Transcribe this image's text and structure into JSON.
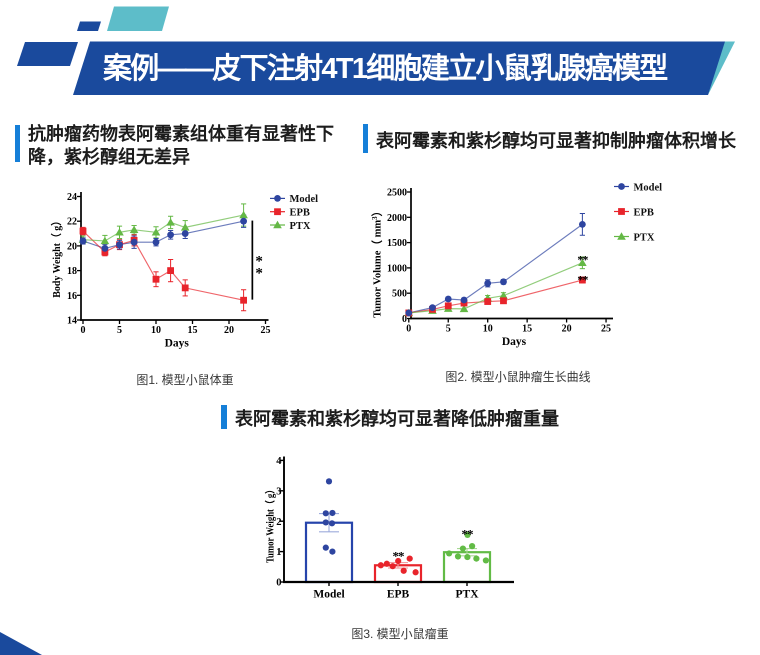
{
  "banner": {
    "title": "案例——皮下注射4T1细胞建立小鼠乳腺癌模型",
    "bg_color": "#1a4a9d",
    "teal_color": "#5dbdc9"
  },
  "sections": [
    {
      "bar_color": "#157fd8",
      "line1": "抗肿瘤药物表阿霉素组体重有显著性下",
      "line2": "降，紫杉醇组无差异"
    },
    {
      "bar_color": "#157fd8",
      "title": "表阿霉素和紫杉醇均可显著抑制肿瘤体积增长"
    },
    {
      "bar_color": "#157fd8",
      "title": "表阿霉素和紫杉醇均可显著降低肿瘤重量"
    }
  ],
  "figures": [
    {
      "caption": "图1. 模型小鼠体重"
    },
    {
      "caption": "图2. 模型小鼠肿瘤生长曲线"
    },
    {
      "caption": "图3. 模型小鼠瘤重"
    }
  ],
  "chart_data": [
    {
      "type": "line",
      "xlabel": "Days",
      "ylabel": "Body Weight（ g）",
      "x": [
        0,
        3,
        5,
        7,
        10,
        12,
        14,
        22
      ],
      "xlim": [
        0,
        25
      ],
      "xticks": [
        0,
        5,
        10,
        15,
        20,
        25
      ],
      "ylim": [
        14,
        24
      ],
      "yticks": [
        14,
        16,
        18,
        20,
        22,
        24
      ],
      "grid": false,
      "legend_position": "top-right",
      "series": [
        {
          "name": "Model",
          "color": "#2e45a0",
          "marker": "circle",
          "values": [
            20.4,
            19.8,
            20.1,
            20.3,
            20.3,
            20.9,
            21.0,
            22.0
          ],
          "errors": [
            0.25,
            0.3,
            0.35,
            0.5,
            0.3,
            0.35,
            0.4,
            0.5
          ]
        },
        {
          "name": "EPB",
          "color": "#e8242b",
          "marker": "square",
          "values": [
            21.2,
            19.5,
            20.1,
            20.45,
            17.3,
            18.0,
            16.6,
            15.6
          ],
          "errors": [
            0.3,
            0.3,
            0.4,
            0.45,
            0.6,
            0.9,
            0.65,
            0.85
          ]
        },
        {
          "name": "PTX",
          "color": "#64b845",
          "marker": "triangle",
          "values": [
            20.5,
            20.4,
            21.1,
            21.3,
            21.1,
            21.9,
            21.5,
            22.5
          ],
          "errors": [
            0.3,
            0.45,
            0.5,
            0.35,
            0.45,
            0.5,
            0.55,
            0.9
          ]
        }
      ],
      "annotations": [
        {
          "type": "vline",
          "label": "**",
          "x": 23.2,
          "y_top": 22.05,
          "y_bottom": 15.65
        }
      ]
    },
    {
      "type": "line",
      "xlabel": "Days",
      "ylabel": "Tumor Volume（ mm³）",
      "x": [
        0,
        3,
        5,
        7,
        10,
        12,
        22
      ],
      "xlim": [
        0,
        25
      ],
      "xticks": [
        0,
        5,
        10,
        15,
        20,
        25
      ],
      "ylim": [
        0,
        2500
      ],
      "yticks": [
        0,
        500,
        1000,
        1500,
        2000,
        2500
      ],
      "grid": false,
      "legend_position": "top-right",
      "series": [
        {
          "name": "Model",
          "color": "#2e45a0",
          "marker": "circle",
          "values": [
            110,
            215,
            385,
            365,
            695,
            725,
            1860
          ],
          "errors": [
            0,
            0,
            25,
            30,
            70,
            45,
            215
          ]
        },
        {
          "name": "EPB",
          "color": "#e8242b",
          "marker": "square",
          "values": [
            110,
            180,
            250,
            305,
            335,
            350,
            760
          ],
          "errors": [
            0,
            0,
            0,
            0,
            25,
            20,
            55
          ]
        },
        {
          "name": "PTX",
          "color": "#64b845",
          "marker": "triangle",
          "values": [
            110,
            155,
            195,
            190,
            400,
            450,
            1100
          ],
          "errors": [
            0,
            0,
            0,
            25,
            55,
            60,
            115
          ]
        }
      ],
      "annotations": [
        {
          "type": "stars",
          "label": "**",
          "x": 22,
          "y": 1255
        },
        {
          "type": "stars",
          "label": "**",
          "x": 22,
          "y": 866
        }
      ]
    },
    {
      "type": "bar-scatter",
      "ylabel": "Tumor Weight（ g）",
      "categories": [
        "Model",
        "EPB",
        "PTX"
      ],
      "ylim": [
        0,
        4
      ],
      "yticks": [
        0,
        1,
        2,
        3,
        4
      ],
      "bar_values": [
        1.95,
        0.55,
        0.98
      ],
      "bar_errors": [
        0.3,
        0.09,
        0.12
      ],
      "bar_colors": [
        "#2644ab",
        "#e8242b",
        "#62bb46"
      ],
      "points": [
        {
          "category": "Model",
          "color": "#2e45a0",
          "values": [
            3.31,
            2.26,
            2.27,
            1.96,
            1.93,
            1.13,
            1.0
          ],
          "offsets": [
            0,
            -3.2,
            3.4,
            -3.2,
            3.0,
            -3.2,
            3.4
          ]
        },
        {
          "category": "EPB",
          "color": "#e8242b",
          "values": [
            0.55,
            0.6,
            0.52,
            0.69,
            0.77,
            0.37,
            0.32
          ],
          "offsets": [
            -17.2,
            -11.2,
            -5.3,
            0.2,
            11.7,
            5.7,
            17.6
          ]
        },
        {
          "category": "PTX",
          "color": "#62bb46",
          "values": [
            1.55,
            1.18,
            1.1,
            0.94,
            0.84,
            0.82,
            0.77,
            0.71
          ],
          "offsets": [
            0.5,
            5.1,
            -4.1,
            -17.9,
            -9.0,
            0.4,
            9.4,
            18.9
          ]
        }
      ],
      "annotations": [
        {
          "type": "stars",
          "label": "**",
          "category": "EPB",
          "y": 1.02
        },
        {
          "type": "stars",
          "label": "**",
          "category": "PTX",
          "y": 1.74
        }
      ]
    }
  ]
}
